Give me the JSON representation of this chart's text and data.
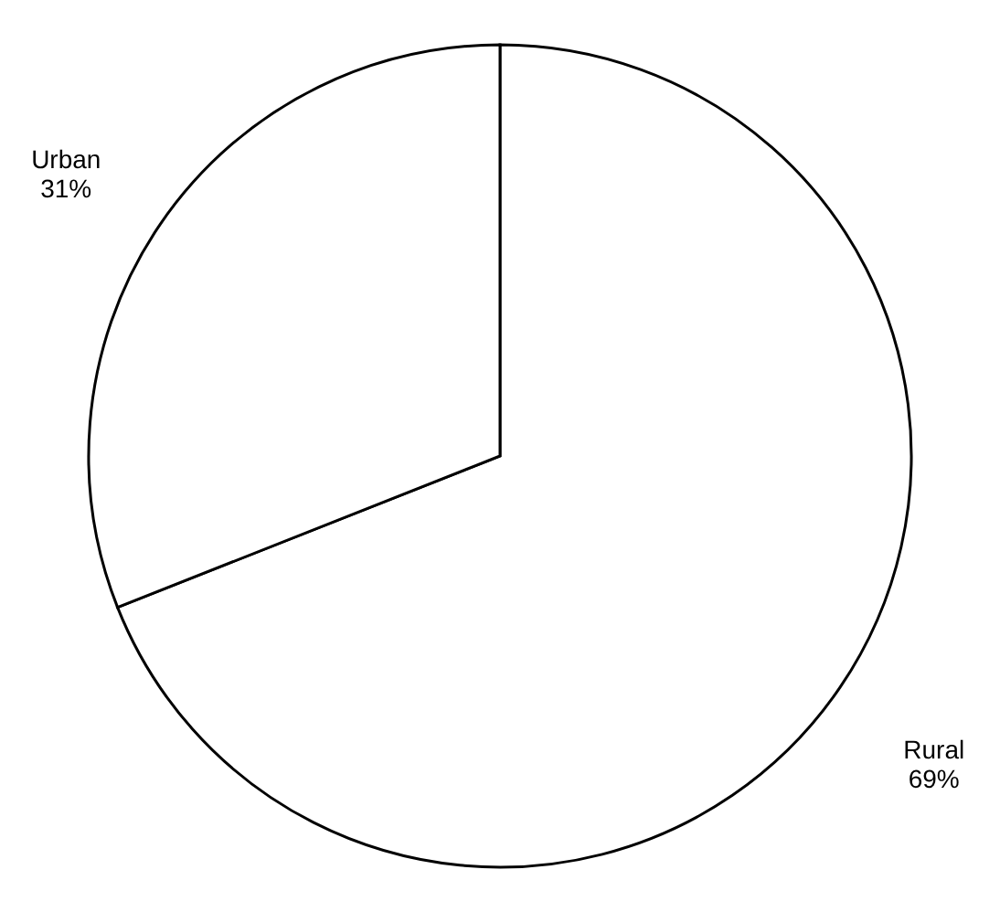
{
  "chart_data": {
    "type": "pie",
    "categories": [
      "Rural",
      "Urban"
    ],
    "values": [
      69,
      31
    ],
    "colors": [
      "#ffffff",
      "#ffffff"
    ],
    "value_labels": [
      "69%",
      "31%"
    ]
  }
}
